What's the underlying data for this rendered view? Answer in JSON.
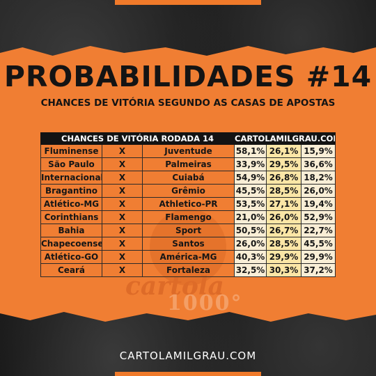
{
  "header": {
    "title": "PROBABILIDADES #14",
    "subtitle": "CHANCES DE VITÓRIA SEGUNDO AS CASAS DE APOSTAS"
  },
  "table": {
    "header_left": "CHANCES DE VITÓRIA RODADA 14",
    "header_right": "CARTOLAMILGRAU.COM",
    "vs_label": "X",
    "rows": [
      {
        "home": "Fluminense",
        "away": "Juventude",
        "home_win": "58,1%",
        "draw": "26,1%",
        "away_win": "15,9%"
      },
      {
        "home": "São Paulo",
        "away": "Palmeiras",
        "home_win": "33,9%",
        "draw": "29,5%",
        "away_win": "36,6%"
      },
      {
        "home": "Internacional",
        "away": "Cuiabá",
        "home_win": "54,9%",
        "draw": "26,8%",
        "away_win": "18,2%"
      },
      {
        "home": "Bragantino",
        "away": "Grêmio",
        "home_win": "45,5%",
        "draw": "28,5%",
        "away_win": "26,0%"
      },
      {
        "home": "Atlético-MG",
        "away": "Athletico-PR",
        "home_win": "53,5%",
        "draw": "27,1%",
        "away_win": "19,4%"
      },
      {
        "home": "Corinthians",
        "away": "Flamengo",
        "home_win": "21,0%",
        "draw": "26,0%",
        "away_win": "52,9%"
      },
      {
        "home": "Bahia",
        "away": "Sport",
        "home_win": "50,5%",
        "draw": "26,7%",
        "away_win": "22,7%"
      },
      {
        "home": "Chapecoense",
        "away": "Santos",
        "home_win": "26,0%",
        "draw": "28,5%",
        "away_win": "45,5%"
      },
      {
        "home": "Atlético-GO",
        "away": "América-MG",
        "home_win": "40,3%",
        "draw": "29,9%",
        "away_win": "29,9%"
      },
      {
        "home": "Ceará",
        "away": "Fortaleza",
        "home_win": "32,5%",
        "draw": "30,3%",
        "away_win": "37,2%"
      }
    ]
  },
  "watermark": {
    "brand": "cartola",
    "number": "1000°"
  },
  "footer": {
    "site": "CARTOLAMILGRAU.COM"
  },
  "colors": {
    "accent_orange": "#f07e33",
    "dark": "#1c1c1c",
    "cell_light": "#f9eed6",
    "cell_yellow": "#fbe6a6"
  }
}
